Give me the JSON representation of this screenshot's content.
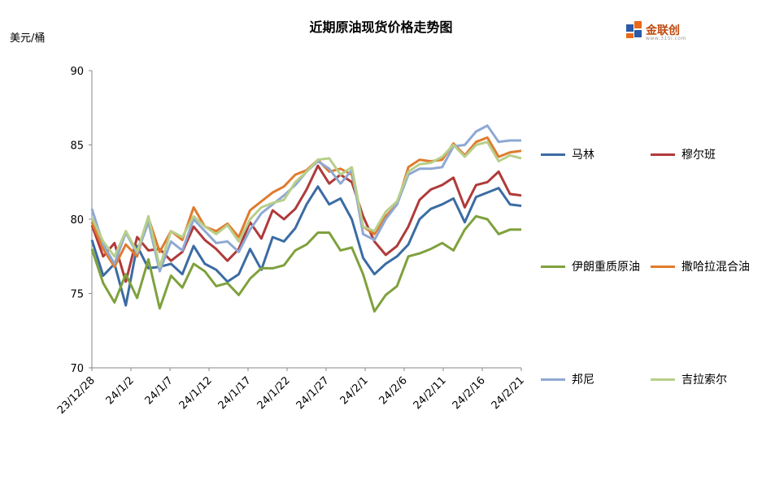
{
  "title": "近期原油现货价格走势图",
  "unit_label": "美元/桶",
  "logo": {
    "text": "金联创",
    "subtext": "www.315i.com"
  },
  "chart_data": {
    "type": "line",
    "ylim": [
      70,
      90
    ],
    "yticks": [
      70,
      75,
      80,
      85,
      90
    ],
    "grid": false,
    "legend_position": "right",
    "x": [
      "23/12/28",
      "23/12/29",
      "24/1/2",
      "24/1/3",
      "24/1/4",
      "24/1/5",
      "24/1/8",
      "24/1/9",
      "24/1/10",
      "24/1/11",
      "24/1/12",
      "24/1/15",
      "24/1/16",
      "24/1/17",
      "24/1/18",
      "24/1/19",
      "24/1/22",
      "24/1/23",
      "24/1/24",
      "24/1/25",
      "24/1/26",
      "24/1/29",
      "24/1/30",
      "24/1/31",
      "24/2/1",
      "24/2/2",
      "24/2/5",
      "24/2/6",
      "24/2/7",
      "24/2/8",
      "24/2/9",
      "24/2/12",
      "24/2/13",
      "24/2/14",
      "24/2/15",
      "24/2/16",
      "24/2/19",
      "24/2/20",
      "24/2/21"
    ],
    "xtick_labels": [
      "23/12/28",
      "24/1/2",
      "24/1/7",
      "24/1/12",
      "24/1/17",
      "24/1/22",
      "24/1/27",
      "24/2/1",
      "24/2/6",
      "24/2/11",
      "24/2/16",
      "24/2/21"
    ],
    "series": [
      {
        "name": "马林",
        "color": "#3b6ca3",
        "values": [
          78.6,
          76.2,
          77.0,
          74.2,
          78.2,
          76.7,
          76.8,
          77.0,
          76.3,
          78.2,
          77.0,
          76.6,
          75.8,
          76.3,
          78.0,
          76.6,
          78.8,
          78.5,
          79.4,
          81.0,
          82.2,
          81.0,
          81.4,
          80.0,
          77.4,
          76.3,
          77.0,
          77.5,
          78.3,
          80.0,
          80.7,
          81.0,
          81.4,
          79.8,
          81.5,
          81.8,
          82.1,
          81.0,
          80.9
        ]
      },
      {
        "name": "穆尔班",
        "color": "#b03a3a",
        "values": [
          79.6,
          77.5,
          78.4,
          75.8,
          78.8,
          77.9,
          78.0,
          77.2,
          77.8,
          79.5,
          78.6,
          78.0,
          77.2,
          78.0,
          79.8,
          78.7,
          80.6,
          80.0,
          80.7,
          82.0,
          83.6,
          82.4,
          83.0,
          82.5,
          80.2,
          78.5,
          77.6,
          78.2,
          79.5,
          81.3,
          82.0,
          82.3,
          82.8,
          80.8,
          82.3,
          82.5,
          83.2,
          81.7,
          81.6
        ]
      },
      {
        "name": "伊朗重质原油",
        "color": "#7fa13d",
        "values": [
          78.0,
          75.7,
          74.4,
          76.3,
          74.7,
          77.3,
          74.0,
          76.2,
          75.4,
          77.0,
          76.5,
          75.5,
          75.7,
          74.9,
          76.0,
          76.7,
          76.7,
          76.9,
          77.9,
          78.3,
          79.1,
          79.1,
          77.9,
          78.1,
          76.3,
          73.8,
          74.9,
          75.5,
          77.5,
          77.7,
          78.0,
          78.4,
          77.9,
          79.3,
          80.2,
          80.0,
          79.0,
          79.3,
          79.3
        ]
      },
      {
        "name": "撒哈拉混合油",
        "color": "#e07b2e",
        "values": [
          79.8,
          78.0,
          76.8,
          78.3,
          77.5,
          80.1,
          77.8,
          79.2,
          78.6,
          80.8,
          79.5,
          79.2,
          79.7,
          78.8,
          80.6,
          81.2,
          81.8,
          82.2,
          83.0,
          83.3,
          84.0,
          83.2,
          83.4,
          83.0,
          79.5,
          79.0,
          80.2,
          81.0,
          83.5,
          84.0,
          83.9,
          84.0,
          85.1,
          84.3,
          85.2,
          85.5,
          84.2,
          84.5,
          84.6
        ]
      },
      {
        "name": "邦尼",
        "color": "#8fa8d3",
        "values": [
          80.7,
          78.3,
          77.0,
          79.1,
          77.7,
          79.8,
          76.5,
          78.5,
          77.9,
          80.0,
          79.2,
          78.4,
          78.5,
          77.8,
          79.3,
          80.4,
          81.0,
          81.6,
          82.3,
          83.2,
          83.9,
          83.4,
          82.4,
          83.3,
          79.0,
          78.6,
          80.0,
          81.0,
          83.0,
          83.4,
          83.4,
          83.5,
          84.9,
          85.0,
          85.9,
          86.3,
          85.2,
          85.3,
          85.3
        ]
      },
      {
        "name": "吉拉索尔",
        "color": "#b7cf8a",
        "values": [
          80.1,
          78.5,
          77.5,
          79.2,
          77.8,
          80.2,
          76.8,
          79.2,
          78.8,
          80.2,
          79.5,
          79.0,
          79.6,
          78.5,
          80.0,
          80.8,
          81.1,
          81.3,
          82.5,
          83.2,
          84.0,
          84.1,
          83.0,
          83.5,
          79.5,
          79.2,
          80.5,
          81.2,
          83.2,
          83.7,
          83.8,
          84.2,
          85.0,
          84.2,
          85.0,
          85.2,
          83.9,
          84.3,
          84.1
        ]
      }
    ]
  }
}
